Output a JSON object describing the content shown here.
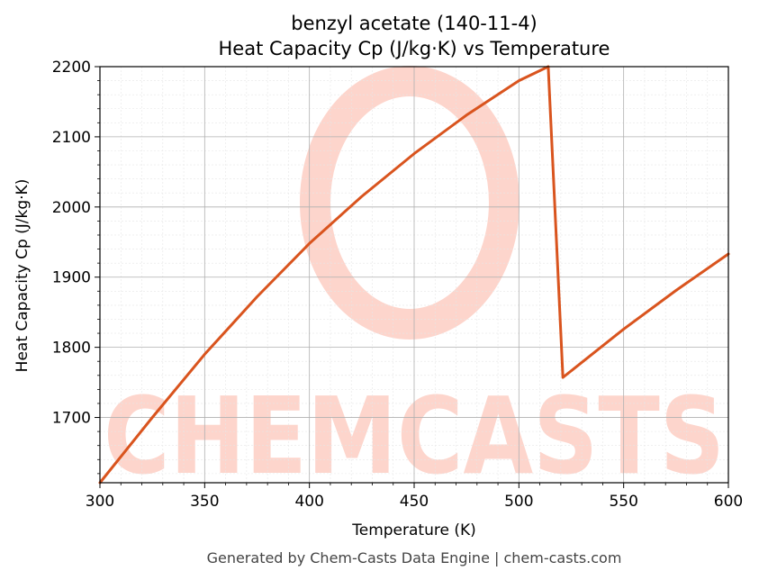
{
  "chart_data": {
    "type": "line",
    "title": "benzyl acetate (140-11-4)",
    "subtitle": "Heat Capacity Cp (J/kg·K) vs Temperature",
    "xlabel": "Temperature (K)",
    "ylabel": "Heat Capacity Cp (J/kg·K)",
    "xlim": [
      300,
      600
    ],
    "ylim": [
      1607,
      2200
    ],
    "xticks": [
      300,
      350,
      400,
      450,
      500,
      550,
      600
    ],
    "yticks": [
      1700,
      1800,
      1900,
      2000,
      2100,
      2200
    ],
    "grid": true,
    "series": [
      {
        "color": "#d9541e",
        "x": [
          300,
          325,
          350,
          375,
          400,
          425,
          450,
          475,
          500,
          514,
          521,
          550,
          575,
          600
        ],
        "y": [
          1607,
          1700,
          1790,
          1872,
          1948,
          2015,
          2076,
          2131,
          2180,
          2200,
          1757,
          1826,
          1881,
          1933
        ]
      }
    ]
  },
  "watermark": {
    "text": "CHEMCASTS",
    "color": "#fdd5cc"
  },
  "footer": "Generated by Chem-Casts Data Engine | chem-casts.com"
}
